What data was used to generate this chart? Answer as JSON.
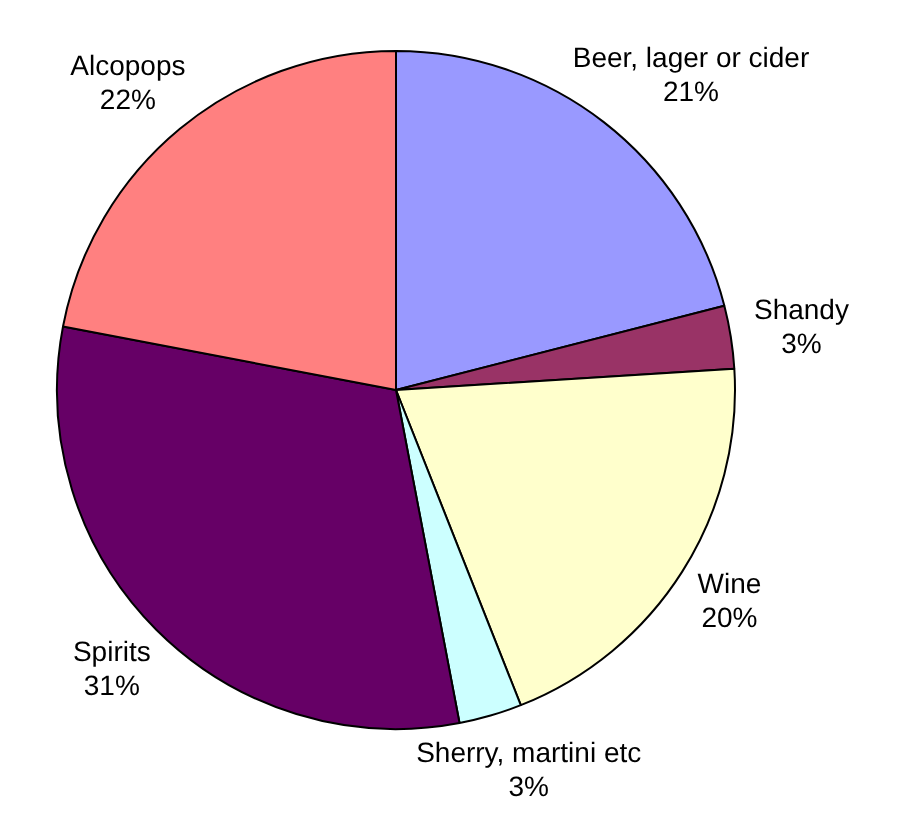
{
  "chart_data": {
    "type": "pie",
    "categories": [
      "Beer, lager or cider",
      "Shandy",
      "Wine",
      "Sherry, martini etc",
      "Spirits",
      "Alcopops"
    ],
    "values": [
      21,
      3,
      20,
      3,
      31,
      22
    ],
    "value_labels": [
      "21%",
      "3%",
      "20%",
      "3%",
      "31%",
      "22%"
    ],
    "colors": [
      "#9999ff",
      "#993366",
      "#ffffcc",
      "#ccffff",
      "#660066",
      "#ff8080"
    ],
    "legend": false
  }
}
